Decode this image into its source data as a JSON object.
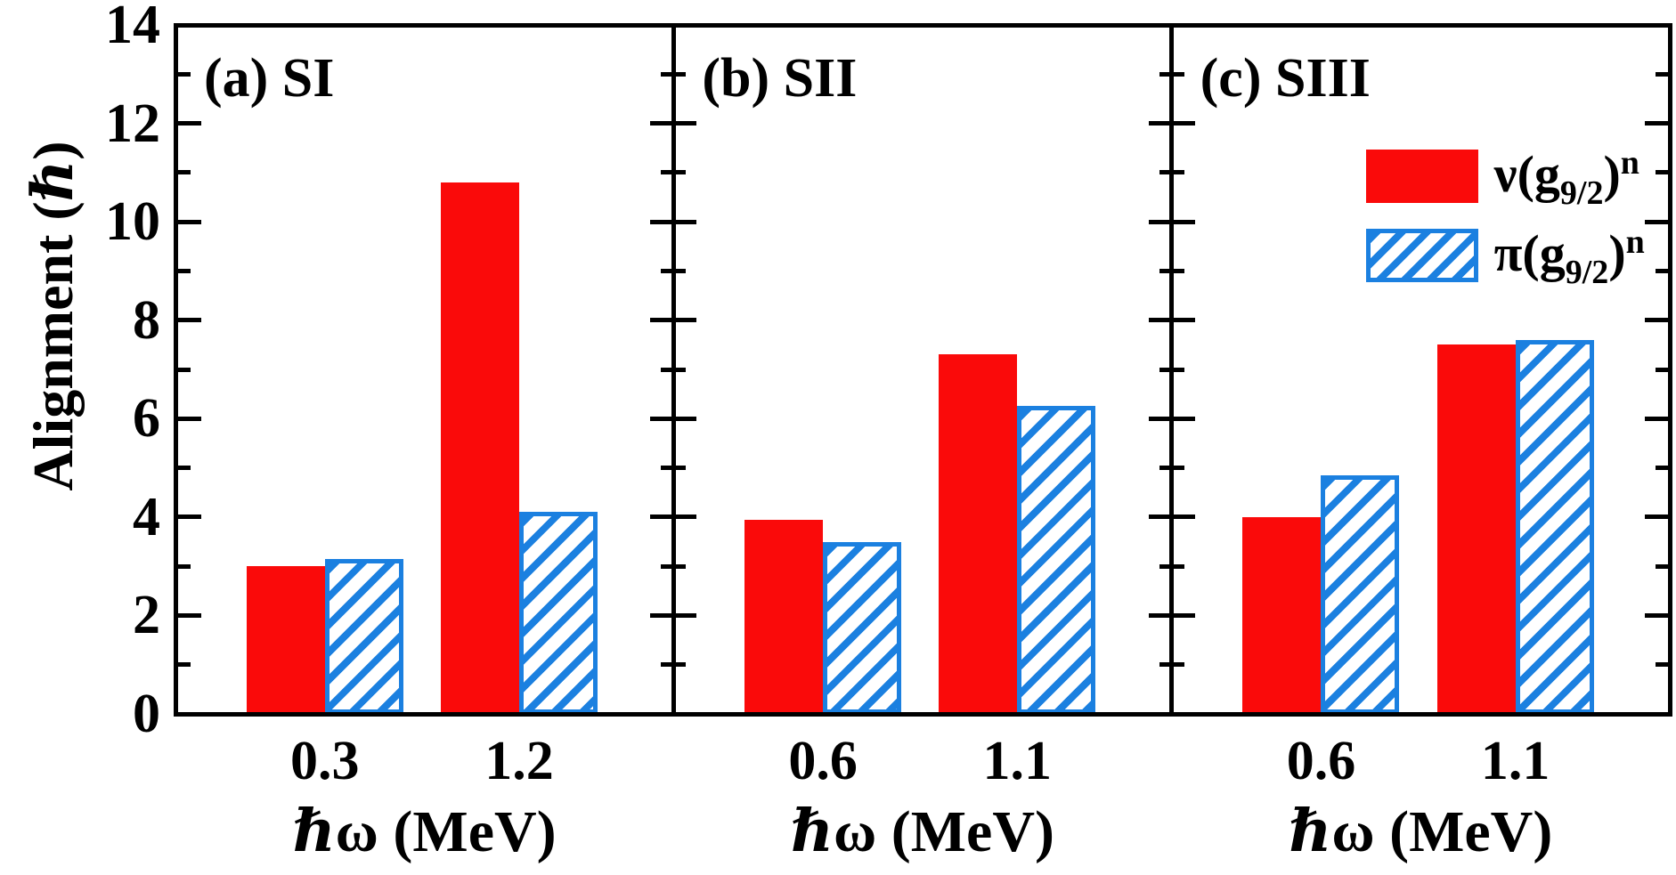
{
  "figure": {
    "background": "#ffffff",
    "ylabel": "Alignment (ℏ)",
    "xlabel": "ℏω (MeV)",
    "y_axis": {
      "min": 0,
      "max": 14,
      "major_ticks": [
        0,
        2,
        4,
        6,
        8,
        10,
        12,
        14
      ],
      "major_tick_labels": [
        "0",
        "2",
        "4",
        "6",
        "8",
        "10",
        "12",
        "14"
      ],
      "minor_ticks": [
        1,
        3,
        5,
        7,
        9,
        11,
        13
      ]
    },
    "colors": {
      "neutron_red": "#fa0a0a",
      "proton_blue": "#1b80e0",
      "axis": "#000000"
    },
    "legend": {
      "items": [
        {
          "swatch": "solid-red",
          "prefix": "ν(g",
          "sub": "9/2",
          "mid": ")",
          "sup": "n"
        },
        {
          "swatch": "hatched-blue",
          "prefix": "π(g",
          "sub": "9/2",
          "mid": ")",
          "sup": "n"
        }
      ]
    }
  },
  "chart_data": [
    {
      "type": "bar",
      "panel_label": "(a) SI",
      "categories": [
        "0.3",
        "1.2"
      ],
      "xlabel": "ℏω (MeV)",
      "ylabel": "Alignment (ℏ)",
      "ylim": [
        0,
        14
      ],
      "grid": false,
      "series": [
        {
          "name": "ν(g9/2)^n",
          "style": "solid-red",
          "values": [
            3.0,
            10.8
          ]
        },
        {
          "name": "π(g9/2)^n",
          "style": "hatched-blue",
          "values": [
            3.15,
            4.1
          ]
        }
      ]
    },
    {
      "type": "bar",
      "panel_label": "(b) SII",
      "categories": [
        "0.6",
        "1.1"
      ],
      "xlabel": "ℏω (MeV)",
      "ylim": [
        0,
        14
      ],
      "grid": false,
      "series": [
        {
          "name": "ν(g9/2)^n",
          "style": "solid-red",
          "values": [
            3.95,
            7.3
          ]
        },
        {
          "name": "π(g9/2)^n",
          "style": "hatched-blue",
          "values": [
            3.5,
            6.25
          ]
        }
      ]
    },
    {
      "type": "bar",
      "panel_label": "(c) SIII",
      "categories": [
        "0.6",
        "1.1"
      ],
      "xlabel": "ℏω (MeV)",
      "ylim": [
        0,
        14
      ],
      "grid": false,
      "legend_position": "upper-right",
      "series": [
        {
          "name": "ν(g9/2)^n",
          "style": "solid-red",
          "values": [
            4.0,
            7.5
          ]
        },
        {
          "name": "π(g9/2)^n",
          "style": "hatched-blue",
          "values": [
            4.85,
            7.6
          ]
        }
      ]
    }
  ]
}
